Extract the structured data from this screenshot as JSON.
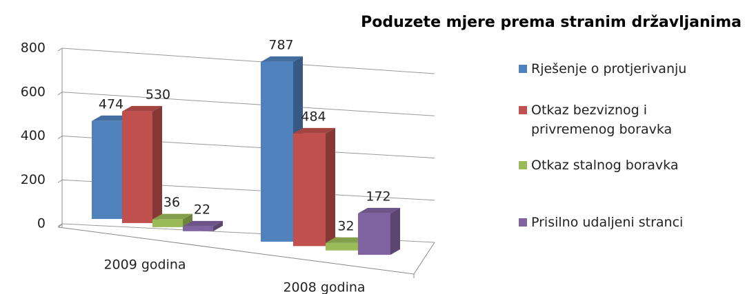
{
  "chart_data": {
    "type": "bar3d",
    "title": "Poduzete mjere prema stranim državljanima",
    "categories": [
      "2009 godina",
      "2008 godina"
    ],
    "series": [
      {
        "name": "Rješenje o protjerivanju",
        "color": "#4f81bd",
        "values": [
          474,
          787
        ]
      },
      {
        "name": "Otkaz bezviznog i privremenog boravka",
        "color": "#c0504d",
        "values": [
          530,
          484
        ]
      },
      {
        "name": "Otkaz stalnog boravka",
        "color": "#9bbb59",
        "values": [
          36,
          32
        ]
      },
      {
        "name": "Prisilno udaljeni stranci",
        "color": "#8064a2",
        "values": [
          22,
          172
        ]
      }
    ],
    "ylim": [
      0,
      800
    ],
    "yticks": [
      0,
      200,
      400,
      600,
      800
    ],
    "grid": true,
    "legend": "right"
  }
}
